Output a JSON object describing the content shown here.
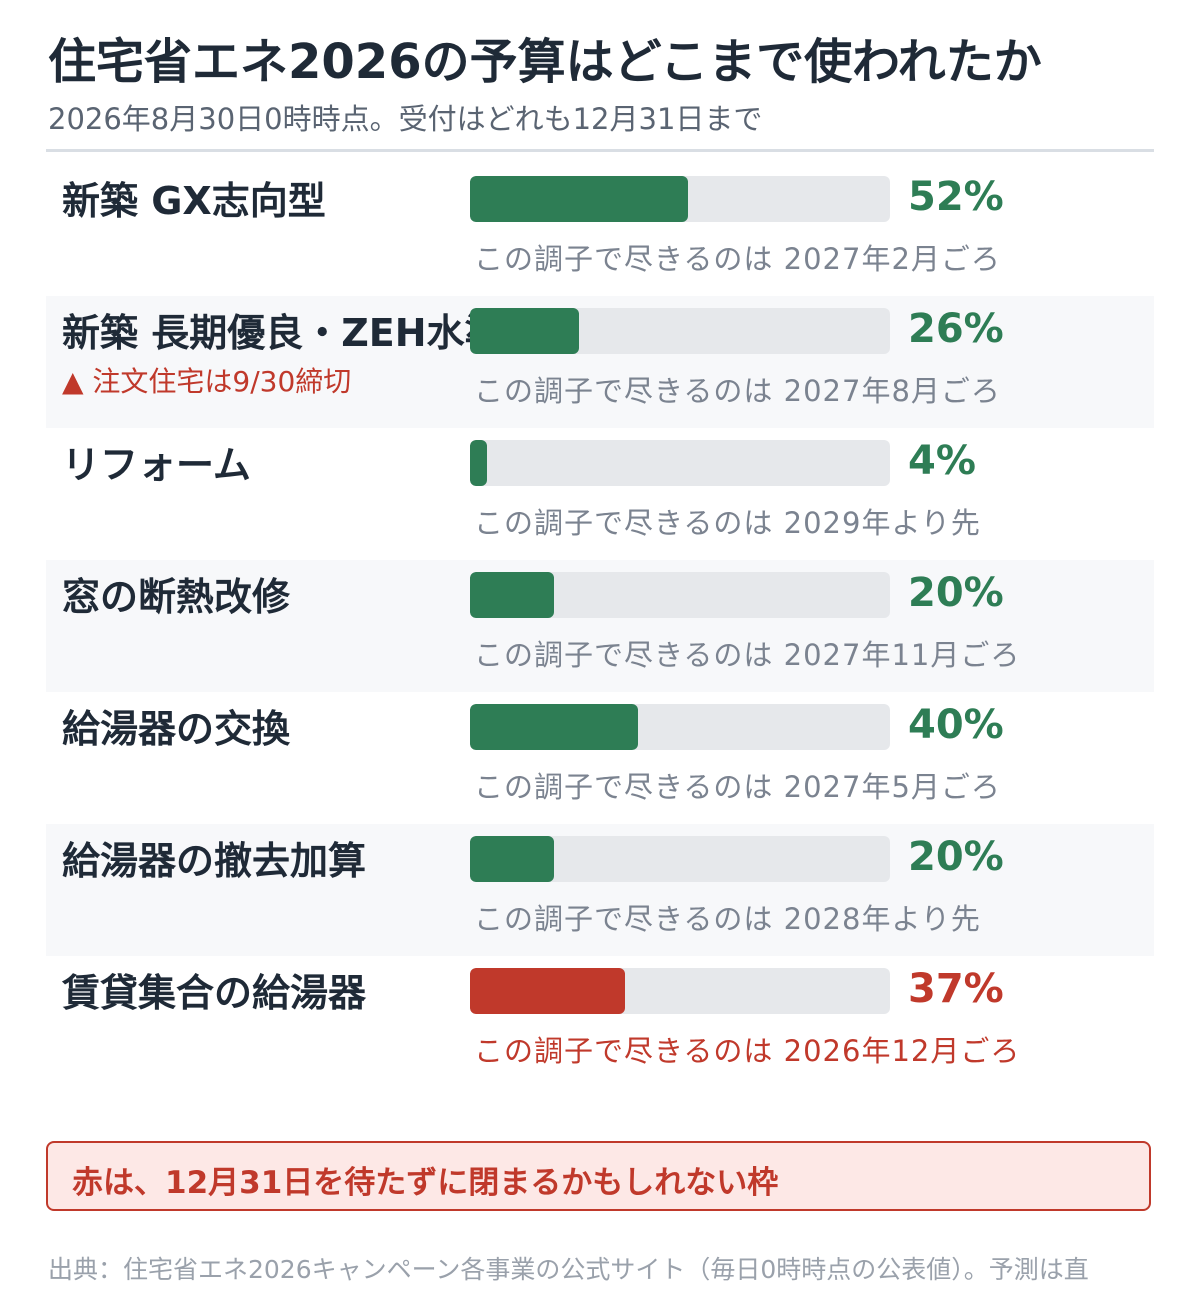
{
  "title": "住宅省エネ2026の予算はどこまで使われたか",
  "subtitle": "2026年8月30日0時時点。受付はどれも12月31日まで",
  "colors": {
    "normal": "#2e7d55",
    "warning": "#c0392b",
    "track": "#e6e8eb"
  },
  "chart_data": {
    "type": "bar",
    "orientation": "horizontal",
    "xlim": [
      0,
      100
    ],
    "unit": "%",
    "categories": [
      "新築 GX志向型",
      "新築 長期優良・ZEH水準",
      "リフォーム",
      "窓の断熱改修",
      "給湯器の交換",
      "給湯器の撤去加算",
      "賃貸集合の給湯器"
    ],
    "rows": [
      {
        "label": "新築 GX志向型",
        "value": 52,
        "pct_label": "52%",
        "forecast": "この調子で尽きるのは 2027年2月ごろ",
        "note": "",
        "warning": false
      },
      {
        "label": "新築 長期優良・ZEH水準",
        "value": 26,
        "pct_label": "26%",
        "forecast": "この調子で尽きるのは 2027年8月ごろ",
        "note": "▲ 注文住宅は9/30締切",
        "warning": false
      },
      {
        "label": "リフォーム",
        "value": 4,
        "pct_label": "4%",
        "forecast": "この調子で尽きるのは 2029年より先",
        "note": "",
        "warning": false
      },
      {
        "label": "窓の断熱改修",
        "value": 20,
        "pct_label": "20%",
        "forecast": "この調子で尽きるのは 2027年11月ごろ",
        "note": "",
        "warning": false
      },
      {
        "label": "給湯器の交換",
        "value": 40,
        "pct_label": "40%",
        "forecast": "この調子で尽きるのは 2027年5月ごろ",
        "note": "",
        "warning": false
      },
      {
        "label": "給湯器の撤去加算",
        "value": 20,
        "pct_label": "20%",
        "forecast": "この調子で尽きるのは 2028年より先",
        "note": "",
        "warning": false
      },
      {
        "label": "賃貸集合の給湯器",
        "value": 37,
        "pct_label": "37%",
        "forecast": "この調子で尽きるのは 2026年12月ごろ",
        "note": "",
        "warning": true
      }
    ]
  },
  "callout": "赤は、12月31日を待たずに閉まるかもしれない枠",
  "source": "出典：住宅省エネ2026キャンペーン各事業の公式サイト（毎日0時時点の公表値）。予測は直"
}
